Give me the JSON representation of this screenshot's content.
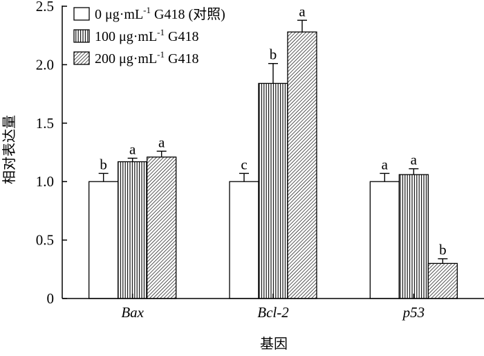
{
  "chart_data": {
    "type": "bar",
    "title": "",
    "xlabel": "基因",
    "ylabel": "相对表达量",
    "ylim": [
      0,
      2.5
    ],
    "yticks": [
      "0",
      "0.5",
      "1.0",
      "1.5",
      "2.0",
      "2.5"
    ],
    "ytick_values": [
      0,
      0.5,
      1.0,
      1.5,
      2.0,
      2.5
    ],
    "categories": [
      "Bax",
      "Bcl-2",
      "p53"
    ],
    "grid": false,
    "legend_position": "top-left",
    "series": [
      {
        "name": "0 μg·mL⁻¹ G418 (对照)",
        "name_parts": {
          "pre": "0 μg·mL",
          "sup": "-1",
          "post": " G418 (对照)"
        },
        "pattern": "blank",
        "values": [
          1.0,
          1.0,
          1.0
        ],
        "errors": [
          0.07,
          0.07,
          0.07
        ],
        "letters": [
          "b",
          "c",
          "a"
        ]
      },
      {
        "name": "100 μg·mL⁻¹ G418",
        "name_parts": {
          "pre": "100 μg·mL",
          "sup": "-1",
          "post": " G418"
        },
        "pattern": "vertical-lines",
        "values": [
          1.17,
          1.84,
          1.06
        ],
        "errors": [
          0.03,
          0.17,
          0.05
        ],
        "letters": [
          "a",
          "b",
          "a"
        ]
      },
      {
        "name": "200 μg·mL⁻¹ G418",
        "name_parts": {
          "pre": "200 μg·mL",
          "sup": "-1",
          "post": " G418"
        },
        "pattern": "diagonal-lines",
        "values": [
          1.21,
          2.28,
          0.3
        ],
        "errors": [
          0.05,
          0.1,
          0.04
        ],
        "letters": [
          "a",
          "a",
          "b"
        ]
      }
    ]
  },
  "colors": {
    "ink": "#000000",
    "fill": "#ffffff"
  }
}
